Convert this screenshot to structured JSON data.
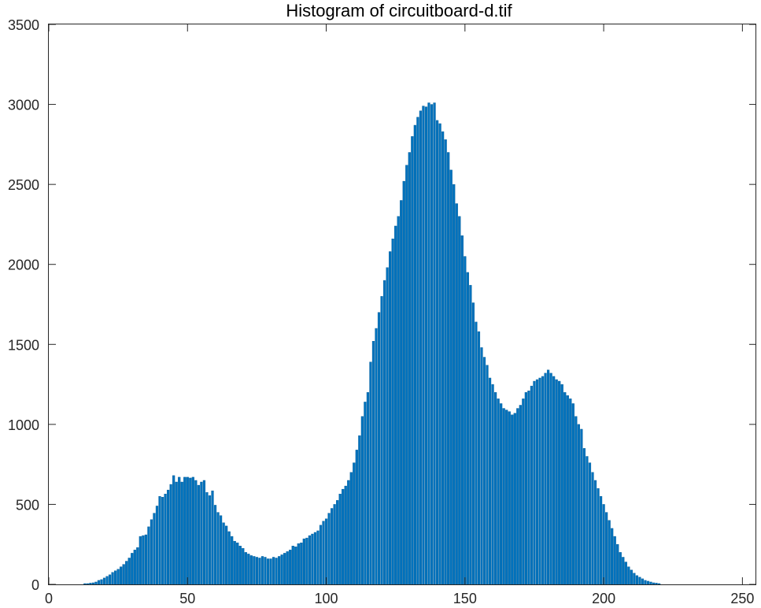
{
  "chart_data": {
    "type": "bar",
    "title": "Histogram of circuitboard-d.tif",
    "xlabel": "",
    "ylabel": "",
    "xlim": [
      0,
      255
    ],
    "ylim": [
      0,
      3500
    ],
    "xticks": [
      0,
      50,
      100,
      150,
      200,
      250
    ],
    "yticks": [
      0,
      500,
      1000,
      1500,
      2000,
      2500,
      3000,
      3500
    ],
    "grid": false,
    "bar_color": "#0072BD",
    "bar_edge_color": "#005a96",
    "x_start": 0,
    "values": [
      0,
      0,
      0,
      0,
      0,
      0,
      0,
      0,
      0,
      0,
      0,
      0,
      0,
      5,
      5,
      8,
      10,
      15,
      25,
      30,
      40,
      50,
      60,
      75,
      85,
      95,
      110,
      125,
      145,
      165,
      195,
      215,
      230,
      300,
      305,
      310,
      360,
      405,
      445,
      490,
      550,
      545,
      565,
      590,
      625,
      680,
      640,
      670,
      640,
      670,
      670,
      665,
      670,
      650,
      620,
      640,
      650,
      575,
      555,
      585,
      495,
      450,
      430,
      385,
      365,
      330,
      300,
      270,
      260,
      240,
      225,
      200,
      190,
      180,
      175,
      170,
      165,
      175,
      170,
      160,
      160,
      170,
      165,
      175,
      185,
      195,
      205,
      215,
      240,
      235,
      255,
      260,
      285,
      290,
      305,
      315,
      325,
      335,
      370,
      395,
      410,
      445,
      475,
      500,
      525,
      565,
      595,
      615,
      650,
      700,
      760,
      840,
      930,
      1050,
      1140,
      1200,
      1390,
      1520,
      1600,
      1700,
      1800,
      1900,
      1980,
      2080,
      2160,
      2240,
      2300,
      2400,
      2520,
      2620,
      2700,
      2800,
      2870,
      2920,
      2960,
      2990,
      2985,
      3010,
      3000,
      3010,
      2900,
      2880,
      2830,
      2780,
      2700,
      2590,
      2500,
      2380,
      2300,
      2180,
      2050,
      1950,
      1870,
      1760,
      1640,
      1580,
      1480,
      1420,
      1370,
      1290,
      1250,
      1200,
      1160,
      1130,
      1100,
      1090,
      1080,
      1060,
      1070,
      1100,
      1120,
      1160,
      1200,
      1210,
      1240,
      1270,
      1280,
      1290,
      1300,
      1320,
      1340,
      1320,
      1300,
      1280,
      1270,
      1250,
      1200,
      1180,
      1160,
      1130,
      1050,
      1000,
      970,
      850,
      800,
      760,
      700,
      650,
      600,
      550,
      500,
      450,
      400,
      350,
      300,
      250,
      200,
      170,
      140,
      110,
      90,
      70,
      55,
      45,
      35,
      25,
      20,
      15,
      10,
      8,
      5,
      0,
      0,
      0,
      0,
      0,
      0,
      0,
      0,
      0,
      0,
      0,
      0,
      0,
      0,
      0
    ]
  }
}
